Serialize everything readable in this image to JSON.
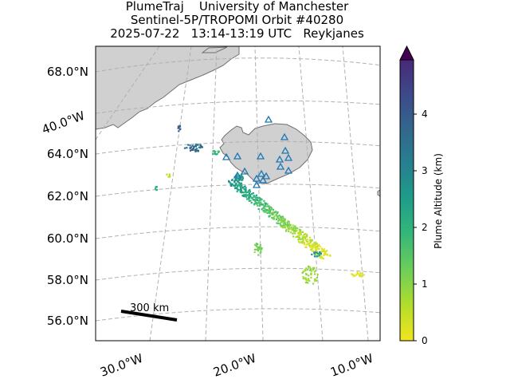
{
  "title": {
    "line1": "PlumeTraj    University of Manchester",
    "line2": "Sentinel-5P/TROPOMI Orbit #40280",
    "line3": "2025-07-22   13:14-13:19 UTC   Reykjanes"
  },
  "map": {
    "lat_labels": [
      "68.0°N",
      "64.0°N",
      "62.0°N",
      "60.0°N",
      "58.0°N",
      "56.0°N"
    ],
    "lon_labels": [
      "30.0°W",
      "20.0°W",
      "10.0°W"
    ],
    "side_lon_label": "40.0°W",
    "scale_bar_label": "300 km",
    "land_color": "#d0d0d0",
    "coast_color": "#707070",
    "volcano_marker_color": "#1f77b4",
    "volcano_marker_shape": "triangle-open",
    "gridline_style": "dashed-grey"
  },
  "colorbar": {
    "label": "Plume Altitude (km)",
    "ticks": [
      "0",
      "1",
      "2",
      "3",
      "4"
    ],
    "range": [
      0,
      5
    ],
    "colormap": "viridis-reversed",
    "extend": "max"
  }
}
